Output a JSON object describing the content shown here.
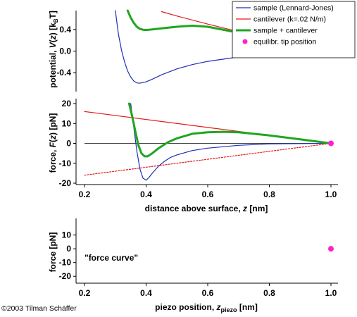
{
  "colors": {
    "sample": "#1f2fb4",
    "cantilever": "#e01a1a",
    "sum": "#1fa61f",
    "dot": "#ff22cc",
    "axis": "#000000"
  },
  "copyright": "©2003 Tilman Schäffer",
  "chart_data": [
    {
      "type": "line",
      "ylabel": "potential, V(z)  [kBT]",
      "ylabel_parts": {
        "pre": "potential, ",
        "var": "V",
        "mid": "(",
        "var2": "z",
        "post": ")   [k",
        "sub": "B",
        "tail": "T]"
      },
      "xlim": [
        0.2,
        1.0
      ],
      "ylim": [
        -0.75,
        0.75
      ],
      "yticks": [
        0.4,
        0.0,
        -0.4
      ],
      "ytick_labels": [
        "0.4",
        "0.0",
        "-0.4"
      ],
      "legend": {
        "placement": "top-right",
        "entries": [
          {
            "label": "sample (Lennard-Jones)",
            "color": "#1f2fb4",
            "kind": "line"
          },
          {
            "label": "cantilever (k=.02 N/m)",
            "color": "#e01a1a",
            "kind": "line"
          },
          {
            "label": "sample + cantilever",
            "color": "#1fa61f",
            "kind": "thick"
          },
          {
            "label": "equilibr. tip position",
            "color": "#ff22cc",
            "kind": "dot"
          }
        ]
      },
      "series": [
        {
          "color": "#1f2fb4",
          "width": 1.2,
          "x": [
            0.3,
            0.31,
            0.32,
            0.33,
            0.34,
            0.35,
            0.36,
            0.37,
            0.38,
            0.4,
            0.42,
            0.45,
            0.5,
            0.55,
            0.6,
            0.7,
            0.8,
            0.9,
            1.0
          ],
          "y": [
            0.75,
            0.32,
            0.02,
            -0.2,
            -0.37,
            -0.48,
            -0.555,
            -0.59,
            -0.595,
            -0.57,
            -0.52,
            -0.44,
            -0.33,
            -0.25,
            -0.19,
            -0.11,
            -0.06,
            -0.025,
            0.0
          ]
        },
        {
          "color": "#e01a1a",
          "width": 1.2,
          "x": [
            0.45,
            0.5,
            0.6,
            0.7,
            0.8,
            0.9,
            1.0
          ],
          "y": [
            0.73,
            0.65,
            0.5,
            0.36,
            0.22,
            0.1,
            0.0
          ]
        },
        {
          "color": "#1fa61f",
          "width": 3,
          "x": [
            0.34,
            0.35,
            0.36,
            0.37,
            0.38,
            0.39,
            0.4,
            0.42,
            0.45,
            0.5,
            0.55,
            0.6,
            0.7,
            0.8,
            0.9,
            1.0
          ],
          "y": [
            0.75,
            0.62,
            0.52,
            0.45,
            0.41,
            0.395,
            0.39,
            0.4,
            0.42,
            0.45,
            0.47,
            0.45,
            0.34,
            0.19,
            0.07,
            0.0
          ]
        }
      ],
      "markers": [
        {
          "x": 1.0,
          "y": 0.0,
          "color": "#ff22cc"
        }
      ]
    },
    {
      "type": "line",
      "ylabel": "force, F(z)  [pN]",
      "ylabel_parts": {
        "pre": "force, ",
        "var": "F",
        "mid": "(",
        "var2": "z",
        "post": ")   [pN]"
      },
      "xlabel": "distance above surface, z  [nm]",
      "xlabel_parts": {
        "pre": "distance above surface, ",
        "var": "z",
        "post": "  [nm]"
      },
      "xlim": [
        0.2,
        1.0
      ],
      "ylim": [
        -20,
        20
      ],
      "yticks": [
        20,
        10,
        0,
        -10,
        -20
      ],
      "ytick_labels": [
        "20",
        "10",
        "0",
        "-10",
        "-20"
      ],
      "xticks": [
        0.2,
        0.4,
        0.6,
        0.8,
        1.0
      ],
      "xtick_labels": [
        "0.2",
        "0.4",
        "0.6",
        "0.8",
        "1.0"
      ],
      "zero_line": true,
      "series": [
        {
          "color": "#1f2fb4",
          "width": 1.2,
          "x": [
            0.35,
            0.36,
            0.37,
            0.38,
            0.39,
            0.4,
            0.41,
            0.42,
            0.44,
            0.46,
            0.48,
            0.5,
            0.55,
            0.6,
            0.7,
            0.8,
            0.9,
            1.0
          ],
          "y": [
            20,
            8,
            -4,
            -13,
            -17.5,
            -18.5,
            -17.0,
            -15.0,
            -11.5,
            -9.0,
            -7.0,
            -5.8,
            -3.6,
            -2.4,
            -1.0,
            -0.3,
            -0.1,
            0.0
          ]
        },
        {
          "color": "#e01a1a",
          "width": 1.2,
          "x": [
            0.2,
            1.0
          ],
          "y": [
            16,
            0
          ]
        },
        {
          "color": "#e01a1a",
          "width": 1.2,
          "dash": "2,2",
          "x": [
            0.2,
            1.0
          ],
          "y": [
            -16,
            0
          ]
        },
        {
          "color": "#1fa61f",
          "width": 3,
          "x": [
            0.345,
            0.355,
            0.365,
            0.375,
            0.385,
            0.395,
            0.405,
            0.42,
            0.44,
            0.47,
            0.5,
            0.55,
            0.6,
            0.65,
            0.7,
            0.8,
            0.9,
            1.0
          ],
          "y": [
            20,
            13.5,
            6,
            -1,
            -5,
            -6.5,
            -6.5,
            -5,
            -2.5,
            0.5,
            2.5,
            4.8,
            5.6,
            5.8,
            5.6,
            4.0,
            2.0,
            0.0
          ]
        }
      ],
      "markers": [
        {
          "x": 1.0,
          "y": 0.0,
          "color": "#ff22cc"
        }
      ]
    },
    {
      "type": "scatter",
      "title": "\"force curve\"",
      "ylabel": "force [pN]",
      "xlabel": "piezo position, zpiezo  [nm]",
      "xlabel_parts": {
        "pre": "piezo position, ",
        "var": "z",
        "sub": "piezo",
        "post": "  [nm]"
      },
      "xlim": [
        0.0,
        1.0
      ],
      "ylim": [
        -25,
        18
      ],
      "yticks": [
        10,
        0,
        -10,
        -20
      ],
      "ytick_labels": [
        "10",
        "0",
        "-10",
        "-20"
      ],
      "xticks": [
        0.2,
        0.4,
        0.6,
        0.8,
        1.0
      ],
      "xtick_labels": [
        "0.2",
        "0.4",
        "0.6",
        "0.8",
        "1.0"
      ],
      "series": [],
      "markers": [
        {
          "x": 1.0,
          "y": 0.0,
          "color": "#ff22cc"
        }
      ]
    }
  ]
}
